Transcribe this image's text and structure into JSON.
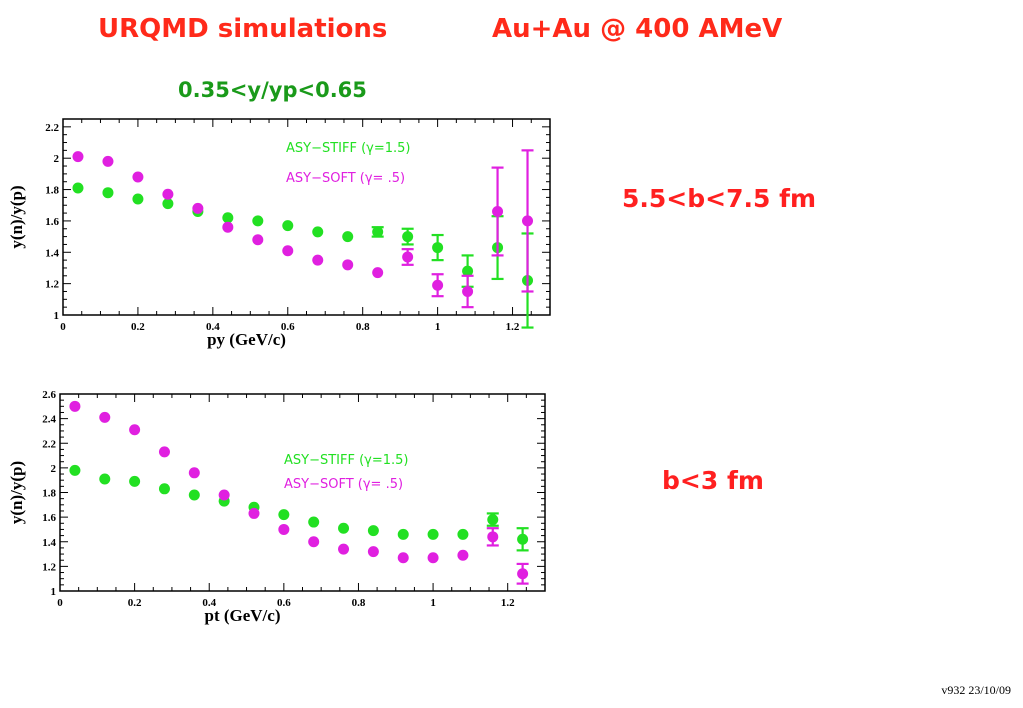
{
  "header": {
    "title_left": "URQMD simulations",
    "title_right": "Au+Au @ 400 AMeV",
    "rapidity_cut": "0.35<y/yp<0.65"
  },
  "annotations": {
    "panel1_condition": "5.5<b<7.5 fm",
    "panel2_condition": "b<3 fm"
  },
  "footer": "v932 23/10/09",
  "colors": {
    "stiff": "#22e022",
    "soft": "#e020e0",
    "title": "#ff2a1a",
    "range": "#1a9a1a"
  },
  "chart_data": [
    {
      "type": "scatter",
      "xlabel": "py (GeV/c)",
      "ylabel": "y(n)/y(p)",
      "xlim": [
        0,
        1.3
      ],
      "ylim": [
        1,
        2.25
      ],
      "xticks": [
        "0",
        "0.2",
        "0.4",
        "0.6",
        "0.8",
        "1",
        "1.2"
      ],
      "yticks": [
        "1",
        "1.2",
        "1.4",
        "1.6",
        "1.8",
        "2",
        "2.2"
      ],
      "legend_placement": "top-right",
      "series": [
        {
          "name": "ASY−STIFF (γ=1.5)",
          "color": "#22e022",
          "x": [
            0.04,
            0.12,
            0.2,
            0.28,
            0.36,
            0.44,
            0.52,
            0.6,
            0.68,
            0.76,
            0.84,
            0.92,
            1.0,
            1.08,
            1.16,
            1.24
          ],
          "y": [
            1.81,
            1.78,
            1.74,
            1.71,
            1.66,
            1.62,
            1.6,
            1.57,
            1.53,
            1.5,
            1.53,
            1.5,
            1.43,
            1.28,
            1.43,
            1.22
          ],
          "err": [
            0,
            0,
            0,
            0,
            0,
            0,
            0,
            0,
            0,
            0,
            0.03,
            0.05,
            0.08,
            0.1,
            0.2,
            0.3
          ]
        },
        {
          "name": "ASY−SOFT (γ= .5)",
          "color": "#e020e0",
          "x": [
            0.04,
            0.12,
            0.2,
            0.28,
            0.36,
            0.44,
            0.52,
            0.6,
            0.68,
            0.76,
            0.84,
            0.92,
            1.0,
            1.08,
            1.16,
            1.24
          ],
          "y": [
            2.01,
            1.98,
            1.88,
            1.77,
            1.68,
            1.56,
            1.48,
            1.41,
            1.35,
            1.32,
            1.27,
            1.37,
            1.19,
            1.15,
            1.66,
            1.6
          ],
          "err": [
            0,
            0,
            0,
            0,
            0,
            0,
            0,
            0,
            0,
            0,
            0,
            0.05,
            0.07,
            0.1,
            0.28,
            0.45
          ]
        }
      ]
    },
    {
      "type": "scatter",
      "xlabel": "pt (GeV/c)",
      "ylabel": "y(n)/y(p)",
      "xlim": [
        0,
        1.3
      ],
      "ylim": [
        1,
        2.6
      ],
      "xticks": [
        "0",
        "0.2",
        "0.4",
        "0.6",
        "0.8",
        "1",
        "1.2"
      ],
      "yticks": [
        "1",
        "1.2",
        "1.4",
        "1.6",
        "1.8",
        "2",
        "2.2",
        "2.4",
        "2.6"
      ],
      "legend_placement": "right",
      "series": [
        {
          "name": "ASY−STIFF (γ=1.5)",
          "color": "#22e022",
          "x": [
            0.04,
            0.12,
            0.2,
            0.28,
            0.36,
            0.44,
            0.52,
            0.6,
            0.68,
            0.76,
            0.84,
            0.92,
            1.0,
            1.08,
            1.16,
            1.24
          ],
          "y": [
            1.98,
            1.91,
            1.89,
            1.83,
            1.78,
            1.73,
            1.68,
            1.62,
            1.56,
            1.51,
            1.49,
            1.46,
            1.46,
            1.46,
            1.58,
            1.42
          ],
          "err": [
            0,
            0,
            0,
            0,
            0,
            0,
            0,
            0,
            0,
            0,
            0,
            0,
            0,
            0,
            0.05,
            0.09
          ]
        },
        {
          "name": "ASY−SOFT (γ= .5)",
          "color": "#e020e0",
          "x": [
            0.04,
            0.12,
            0.2,
            0.28,
            0.36,
            0.44,
            0.52,
            0.6,
            0.68,
            0.76,
            0.84,
            0.92,
            1.0,
            1.08,
            1.16,
            1.24
          ],
          "y": [
            2.5,
            2.41,
            2.31,
            2.13,
            1.96,
            1.78,
            1.63,
            1.5,
            1.4,
            1.34,
            1.32,
            1.27,
            1.27,
            1.29,
            1.44,
            1.14
          ],
          "err": [
            0,
            0,
            0,
            0,
            0,
            0,
            0,
            0,
            0,
            0,
            0,
            0,
            0,
            0,
            0.07,
            0.08
          ]
        }
      ]
    }
  ]
}
